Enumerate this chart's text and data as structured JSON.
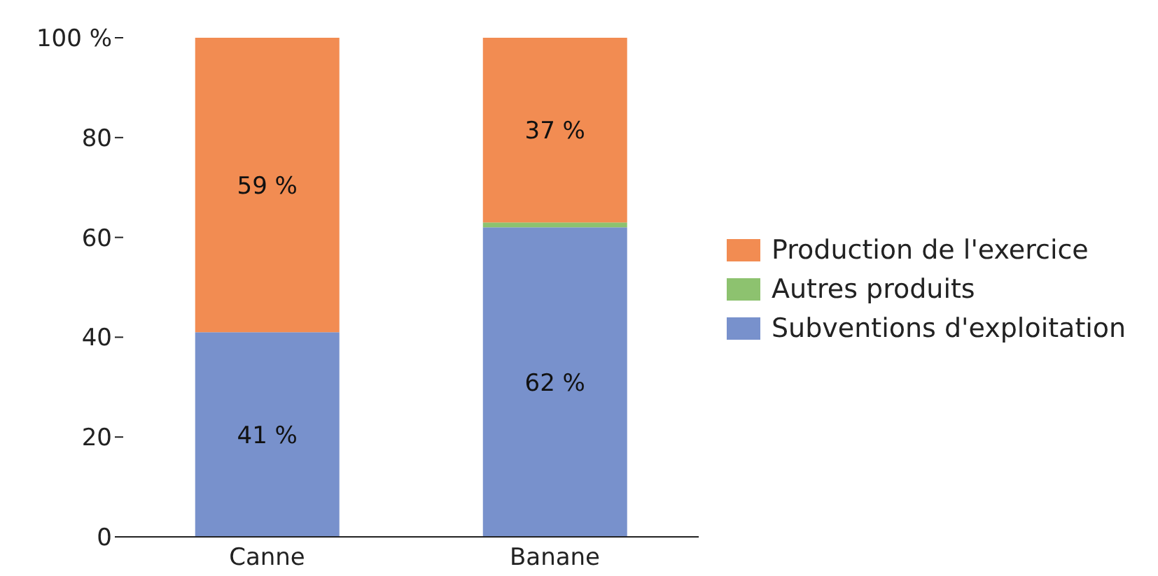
{
  "chart_data": {
    "type": "bar",
    "stacked": true,
    "categories": [
      "Canne",
      "Banane"
    ],
    "series": [
      {
        "name": "Subventions d'exploitation",
        "color": "#7891cc",
        "values": [
          41,
          62
        ],
        "value_labels": [
          "41 %",
          "62 %"
        ]
      },
      {
        "name": "Autres produits",
        "color": "#8dc26f",
        "values": [
          0,
          1
        ],
        "value_labels": [
          null,
          null
        ]
      },
      {
        "name": "Production de l'exercice",
        "color": "#f28c52",
        "values": [
          59,
          37
        ],
        "value_labels": [
          "59 %",
          "37 %"
        ]
      }
    ],
    "ylim": [
      0,
      100
    ],
    "yticks": [
      0,
      20,
      40,
      60,
      {
        "value": 100,
        "label": "100 %"
      },
      80
    ],
    "grid": false,
    "legend": "right"
  }
}
